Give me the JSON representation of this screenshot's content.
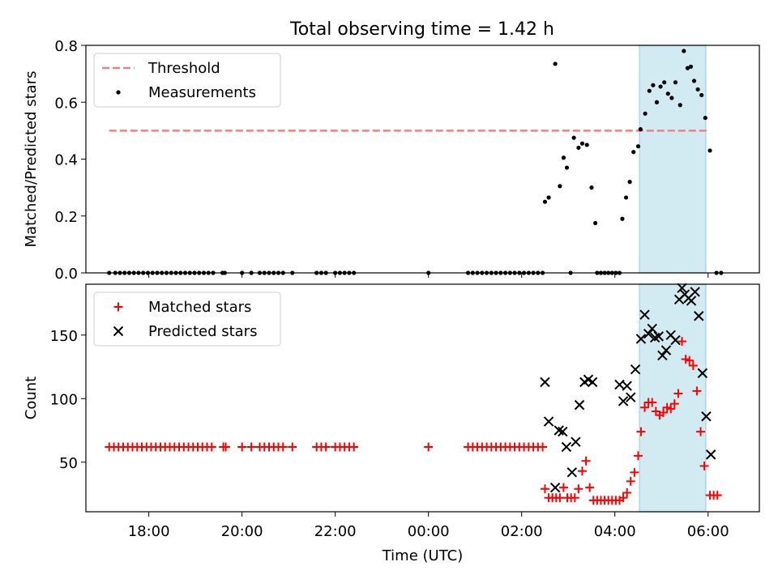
{
  "title": "Total observing time = 1.42 h",
  "colors": {
    "threshold": "#f08080",
    "measurement": "#000000",
    "matched": "#ff0000",
    "predicted": "#000000",
    "window": "#add8e6"
  },
  "chart_data": [
    {
      "type": "scatter",
      "ylabel": "Matched/Predicted stars",
      "xlabel": "",
      "x_unit": "hours relative to 00:00 UTC",
      "xlim": [
        -7.35,
        7.1
      ],
      "ylim": [
        0.0,
        0.8
      ],
      "yticks": [
        0.0,
        0.2,
        0.4,
        0.6,
        0.8
      ],
      "ytick_labels": [
        "0.0",
        "0.2",
        "0.4",
        "0.6",
        "0.8"
      ],
      "legend_position": "top-left",
      "highlight_window": [
        4.53,
        5.95
      ],
      "threshold": {
        "name": "Threshold",
        "y": 0.5,
        "x_range": [
          -6.85,
          6.0
        ]
      },
      "series": [
        {
          "name": "Measurements",
          "points": [
            [
              -6.85,
              0.0
            ],
            [
              -6.72,
              0.0
            ],
            [
              -6.62,
              0.0
            ],
            [
              -6.52,
              0.0
            ],
            [
              -6.42,
              0.0
            ],
            [
              -6.32,
              0.0
            ],
            [
              -6.22,
              0.0
            ],
            [
              -6.12,
              0.0
            ],
            [
              -6.02,
              0.0
            ],
            [
              -5.92,
              0.0
            ],
            [
              -5.82,
              0.0
            ],
            [
              -5.72,
              0.0
            ],
            [
              -5.62,
              0.0
            ],
            [
              -5.52,
              0.0
            ],
            [
              -5.42,
              0.0
            ],
            [
              -5.32,
              0.0
            ],
            [
              -5.22,
              0.0
            ],
            [
              -5.12,
              0.0
            ],
            [
              -5.02,
              0.0
            ],
            [
              -4.92,
              0.0
            ],
            [
              -4.82,
              0.0
            ],
            [
              -4.72,
              0.0
            ],
            [
              -4.62,
              0.0
            ],
            [
              -4.42,
              0.0
            ],
            [
              -4.37,
              0.0
            ],
            [
              -4.0,
              0.0
            ],
            [
              -3.8,
              0.0
            ],
            [
              -3.62,
              0.0
            ],
            [
              -3.52,
              0.0
            ],
            [
              -3.42,
              0.0
            ],
            [
              -3.32,
              0.0
            ],
            [
              -3.22,
              0.0
            ],
            [
              -3.12,
              0.0
            ],
            [
              -2.92,
              0.0
            ],
            [
              -2.4,
              0.0
            ],
            [
              -2.3,
              0.0
            ],
            [
              -2.2,
              0.0
            ],
            [
              -2.0,
              0.0
            ],
            [
              -1.9,
              0.0
            ],
            [
              -1.8,
              0.0
            ],
            [
              -1.7,
              0.0
            ],
            [
              -1.6,
              0.0
            ],
            [
              0.0,
              0.0
            ],
            [
              0.85,
              0.0
            ],
            [
              0.95,
              0.0
            ],
            [
              1.05,
              0.0
            ],
            [
              1.15,
              0.0
            ],
            [
              1.25,
              0.0
            ],
            [
              1.35,
              0.0
            ],
            [
              1.45,
              0.0
            ],
            [
              1.55,
              0.0
            ],
            [
              1.65,
              0.0
            ],
            [
              1.75,
              0.0
            ],
            [
              1.85,
              0.0
            ],
            [
              1.95,
              0.0
            ],
            [
              2.05,
              0.0
            ],
            [
              2.15,
              0.0
            ],
            [
              2.25,
              0.0
            ],
            [
              2.35,
              0.0
            ],
            [
              2.45,
              0.0
            ],
            [
              2.5,
              0.25
            ],
            [
              2.58,
              0.265
            ],
            [
              2.72,
              0.735
            ],
            [
              2.82,
              0.305
            ],
            [
              2.9,
              0.405
            ],
            [
              2.97,
              0.37
            ],
            [
              3.05,
              0.0
            ],
            [
              3.12,
              0.475
            ],
            [
              3.22,
              0.44
            ],
            [
              3.3,
              0.455
            ],
            [
              3.4,
              0.45
            ],
            [
              3.5,
              0.3
            ],
            [
              3.58,
              0.175
            ],
            [
              3.62,
              0.0
            ],
            [
              3.7,
              0.0
            ],
            [
              3.78,
              0.0
            ],
            [
              3.86,
              0.0
            ],
            [
              3.94,
              0.0
            ],
            [
              4.02,
              0.0
            ],
            [
              4.1,
              0.0
            ],
            [
              4.16,
              0.19
            ],
            [
              4.24,
              0.265
            ],
            [
              4.32,
              0.32
            ],
            [
              4.4,
              0.425
            ],
            [
              4.5,
              0.445
            ],
            [
              4.55,
              0.505
            ],
            [
              4.65,
              0.56
            ],
            [
              4.74,
              0.64
            ],
            [
              4.82,
              0.66
            ],
            [
              4.9,
              0.6
            ],
            [
              4.98,
              0.655
            ],
            [
              5.06,
              0.67
            ],
            [
              5.14,
              0.63
            ],
            [
              5.22,
              0.615
            ],
            [
              5.3,
              0.67
            ],
            [
              5.4,
              0.59
            ],
            [
              5.48,
              0.78
            ],
            [
              5.56,
              0.72
            ],
            [
              5.63,
              0.725
            ],
            [
              5.7,
              0.675
            ],
            [
              5.78,
              0.645
            ],
            [
              5.86,
              0.625
            ],
            [
              5.94,
              0.545
            ],
            [
              6.04,
              0.43
            ],
            [
              6.18,
              0.0
            ],
            [
              6.28,
              0.0
            ]
          ]
        }
      ]
    },
    {
      "type": "scatter",
      "ylabel": "Count",
      "xlabel": "Time (UTC)",
      "x_unit": "hours relative to 00:00 UTC",
      "xlim": [
        -7.35,
        7.1
      ],
      "ylim": [
        11,
        190
      ],
      "yticks": [
        50,
        100,
        150
      ],
      "ytick_labels": [
        "50",
        "100",
        "150"
      ],
      "xticks": [
        -6,
        -4,
        -2,
        0,
        2,
        4,
        6
      ],
      "xtick_labels": [
        "18:00",
        "20:00",
        "22:00",
        "00:00",
        "02:00",
        "04:00",
        "06:00"
      ],
      "legend_position": "top-left",
      "highlight_window": [
        4.53,
        5.95
      ],
      "series": [
        {
          "name": "Matched stars",
          "marker": "plus",
          "points": [
            [
              -6.85,
              62
            ],
            [
              -6.75,
              62
            ],
            [
              -6.65,
              62
            ],
            [
              -6.55,
              62
            ],
            [
              -6.45,
              62
            ],
            [
              -6.35,
              62
            ],
            [
              -6.25,
              62
            ],
            [
              -6.15,
              62
            ],
            [
              -6.05,
              62
            ],
            [
              -5.95,
              62
            ],
            [
              -5.85,
              62
            ],
            [
              -5.75,
              62
            ],
            [
              -5.65,
              62
            ],
            [
              -5.55,
              62
            ],
            [
              -5.45,
              62
            ],
            [
              -5.35,
              62
            ],
            [
              -5.25,
              62
            ],
            [
              -5.15,
              62
            ],
            [
              -5.05,
              62
            ],
            [
              -4.95,
              62
            ],
            [
              -4.85,
              62
            ],
            [
              -4.75,
              62
            ],
            [
              -4.65,
              62
            ],
            [
              -4.4,
              62
            ],
            [
              -4.35,
              62
            ],
            [
              -4.0,
              62
            ],
            [
              -3.8,
              62
            ],
            [
              -3.62,
              62
            ],
            [
              -3.52,
              62
            ],
            [
              -3.42,
              62
            ],
            [
              -3.32,
              62
            ],
            [
              -3.22,
              62
            ],
            [
              -3.12,
              62
            ],
            [
              -2.92,
              62
            ],
            [
              -2.4,
              62
            ],
            [
              -2.3,
              62
            ],
            [
              -2.2,
              62
            ],
            [
              -2.0,
              62
            ],
            [
              -1.9,
              62
            ],
            [
              -1.8,
              62
            ],
            [
              -1.7,
              62
            ],
            [
              -1.6,
              62
            ],
            [
              0.0,
              62
            ],
            [
              0.85,
              62
            ],
            [
              0.95,
              62
            ],
            [
              1.05,
              62
            ],
            [
              1.15,
              62
            ],
            [
              1.25,
              62
            ],
            [
              1.35,
              62
            ],
            [
              1.45,
              62
            ],
            [
              1.55,
              62
            ],
            [
              1.65,
              62
            ],
            [
              1.75,
              62
            ],
            [
              1.85,
              62
            ],
            [
              1.95,
              62
            ],
            [
              2.05,
              62
            ],
            [
              2.15,
              62
            ],
            [
              2.25,
              62
            ],
            [
              2.35,
              62
            ],
            [
              2.45,
              62
            ],
            [
              2.5,
              29
            ],
            [
              2.58,
              22
            ],
            [
              2.66,
              22
            ],
            [
              2.74,
              22
            ],
            [
              2.82,
              22
            ],
            [
              2.9,
              30
            ],
            [
              2.98,
              22
            ],
            [
              3.06,
              22
            ],
            [
              3.14,
              22
            ],
            [
              3.22,
              29
            ],
            [
              3.3,
              43
            ],
            [
              3.38,
              51
            ],
            [
              3.46,
              30
            ],
            [
              3.54,
              20
            ],
            [
              3.62,
              20
            ],
            [
              3.7,
              20
            ],
            [
              3.78,
              20
            ],
            [
              3.86,
              20
            ],
            [
              3.94,
              20
            ],
            [
              4.02,
              20
            ],
            [
              4.1,
              20
            ],
            [
              4.18,
              22
            ],
            [
              4.26,
              26
            ],
            [
              4.34,
              35
            ],
            [
              4.42,
              42
            ],
            [
              4.5,
              55
            ],
            [
              4.56,
              74
            ],
            [
              4.64,
              93
            ],
            [
              4.72,
              97
            ],
            [
              4.8,
              97
            ],
            [
              4.88,
              90
            ],
            [
              4.96,
              87
            ],
            [
              5.04,
              89
            ],
            [
              5.12,
              93
            ],
            [
              5.2,
              92
            ],
            [
              5.28,
              96
            ],
            [
              5.36,
              104
            ],
            [
              5.44,
              145
            ],
            [
              5.52,
              131
            ],
            [
              5.6,
              130
            ],
            [
              5.68,
              126
            ],
            [
              5.76,
              106
            ],
            [
              5.84,
              74
            ],
            [
              5.92,
              47
            ],
            [
              6.04,
              24
            ],
            [
              6.12,
              24
            ],
            [
              6.2,
              24
            ]
          ]
        },
        {
          "name": "Predicted stars",
          "marker": "x",
          "points": [
            [
              2.5,
              113
            ],
            [
              2.58,
              82
            ],
            [
              2.72,
              30
            ],
            [
              2.8,
              75
            ],
            [
              2.88,
              74
            ],
            [
              2.96,
              62
            ],
            [
              3.08,
              42
            ],
            [
              3.16,
              66
            ],
            [
              3.24,
              95
            ],
            [
              3.35,
              113
            ],
            [
              3.43,
              115
            ],
            [
              3.52,
              113
            ],
            [
              4.1,
              111
            ],
            [
              4.18,
              98
            ],
            [
              4.26,
              110
            ],
            [
              4.34,
              101
            ],
            [
              4.44,
              123
            ],
            [
              4.56,
              147
            ],
            [
              4.64,
              166
            ],
            [
              4.72,
              151
            ],
            [
              4.8,
              155
            ],
            [
              4.86,
              148
            ],
            [
              4.94,
              149
            ],
            [
              5.02,
              134
            ],
            [
              5.1,
              138
            ],
            [
              5.2,
              150
            ],
            [
              5.3,
              146
            ],
            [
              5.38,
              178
            ],
            [
              5.44,
              187
            ],
            [
              5.5,
              182
            ],
            [
              5.58,
              179
            ],
            [
              5.64,
              177
            ],
            [
              5.72,
              184
            ],
            [
              5.8,
              165
            ],
            [
              5.88,
              120
            ],
            [
              5.96,
              86
            ],
            [
              6.06,
              56
            ]
          ]
        }
      ]
    }
  ]
}
